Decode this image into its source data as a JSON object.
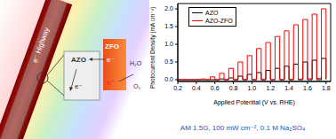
{
  "chart_data": {
    "type": "line",
    "x_label": "Applied Potential (V vs. RHE)",
    "y_label": "Photocurrent Density (mA cm⁻²)",
    "annotations": [
      "AM 1.5G, 100 mW cm⁻², 0.1 M Na₂SO₄"
    ],
    "x": [
      0.2,
      0.25,
      0.25,
      0.3,
      0.3,
      0.35,
      0.35,
      0.4,
      0.4,
      0.45,
      0.45,
      0.5,
      0.5,
      0.55,
      0.55,
      0.6,
      0.6,
      0.65,
      0.65,
      0.7,
      0.7,
      0.75,
      0.75,
      0.8,
      0.8,
      0.85,
      0.85,
      0.9,
      0.9,
      0.95,
      0.95,
      1.0,
      1.0,
      1.05,
      1.05,
      1.1,
      1.1,
      1.15,
      1.15,
      1.2,
      1.2,
      1.25,
      1.25,
      1.3,
      1.3,
      1.35,
      1.35,
      1.4,
      1.4,
      1.45,
      1.45,
      1.5,
      1.5,
      1.55,
      1.55,
      1.6,
      1.6,
      1.65,
      1.65,
      1.7,
      1.7,
      1.75,
      1.75,
      1.8,
      1.8
    ],
    "series": [
      {
        "name": "AZO",
        "color": "#000000",
        "values": [
          0,
          0,
          0,
          0,
          0,
          0,
          0,
          0,
          0,
          0,
          0,
          0,
          0,
          0,
          0,
          0,
          0,
          0,
          0.02,
          0.02,
          0,
          0,
          0.05,
          0.05,
          0,
          0,
          0.1,
          0.1,
          0,
          0,
          0.15,
          0.15,
          0,
          0,
          0.2,
          0.2,
          0,
          0,
          0.26,
          0.26,
          0,
          0,
          0.32,
          0.32,
          0,
          0,
          0.38,
          0.38,
          0,
          0,
          0.44,
          0.44,
          0,
          0,
          0.5,
          0.5,
          0,
          0,
          0.55,
          0.55,
          0,
          0,
          0.6,
          0.6,
          0
        ]
      },
      {
        "name": "AZO-ZFO",
        "color": "#ff0000",
        "values": [
          0,
          0,
          0,
          0,
          0,
          0,
          0,
          0,
          0,
          0,
          0.02,
          0.02,
          0,
          0,
          0.08,
          0.08,
          0,
          0,
          0.18,
          0.18,
          0,
          0,
          0.32,
          0.32,
          0,
          0,
          0.5,
          0.5,
          0,
          0,
          0.68,
          0.68,
          0,
          0,
          0.88,
          0.88,
          0,
          0,
          1.05,
          1.05,
          0,
          0,
          1.22,
          1.22,
          0,
          0,
          1.38,
          1.38,
          0,
          0.01,
          1.55,
          1.55,
          0.01,
          0.02,
          1.7,
          1.7,
          0.02,
          0.03,
          1.85,
          1.85,
          0.03,
          0.05,
          2.0,
          2.0,
          0.05
        ]
      }
    ],
    "xlim": [
      0.2,
      1.85
    ],
    "xticks": [
      0.2,
      0.4,
      0.6,
      0.8,
      {
        "value": 1,
        "label": "1.0"
      },
      1.2,
      1.4,
      1.6,
      1.8
    ],
    "ylim": [
      -0.05,
      2.15
    ],
    "yticks": [
      {
        "value": 0,
        "label": "0.0"
      },
      0.5,
      {
        "value": 1,
        "label": "1.0"
      },
      1.5,
      {
        "value": 2,
        "label": "2.0"
      }
    ],
    "legend": "upper left",
    "grid": false
  },
  "diagram": {
    "rod": {
      "labels": [
        "e⁻",
        "Highway"
      ]
    },
    "core": {
      "label": "AZO",
      "carrier": "e⁻"
    },
    "shell": {
      "label": "ZFO",
      "electron": "e⁻",
      "hole": "h⁺"
    },
    "reaction": {
      "reactant": "H₂O",
      "product": "O₂"
    }
  }
}
